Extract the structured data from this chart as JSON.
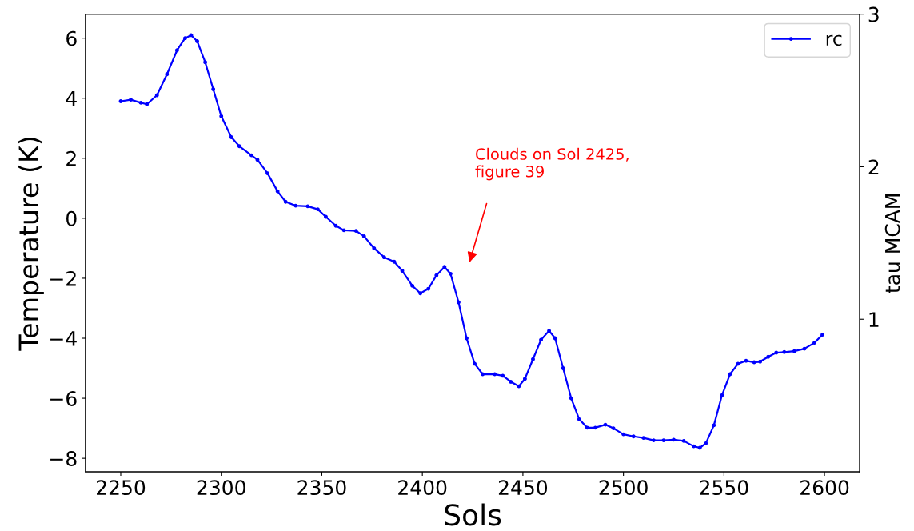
{
  "chart_data": {
    "type": "line",
    "xlabel": "Sols",
    "ylabel": "Temperature (K)",
    "y2label": "tau MCAM",
    "x": [
      2250,
      2255,
      2260,
      2263,
      2268,
      2273,
      2278,
      2282,
      2285,
      2288,
      2292,
      2296,
      2300,
      2305,
      2309,
      2315,
      2318,
      2323,
      2328,
      2332,
      2337,
      2343,
      2348,
      2352,
      2357,
      2361,
      2367,
      2371,
      2376,
      2381,
      2386,
      2390,
      2395,
      2399,
      2403,
      2407,
      2411,
      2414,
      2418,
      2422,
      2426,
      2430,
      2436,
      2440,
      2444,
      2448,
      2451,
      2455,
      2459,
      2463,
      2466,
      2470,
      2474,
      2478,
      2482,
      2486,
      2491,
      2495,
      2500,
      2505,
      2510,
      2515,
      2520,
      2525,
      2530,
      2535,
      2538,
      2541,
      2545,
      2549,
      2553,
      2557,
      2561,
      2565,
      2568,
      2572,
      2576,
      2580,
      2585,
      2590,
      2595,
      2599
    ],
    "series": [
      {
        "name": "rc",
        "color": "#0000ff",
        "values": [
          3.9,
          3.95,
          3.85,
          3.8,
          4.1,
          4.8,
          5.6,
          6.0,
          6.1,
          5.9,
          5.2,
          4.3,
          3.4,
          2.7,
          2.4,
          2.1,
          1.95,
          1.5,
          0.9,
          0.55,
          0.42,
          0.4,
          0.3,
          0.05,
          -0.25,
          -0.4,
          -0.42,
          -0.6,
          -1.0,
          -1.3,
          -1.45,
          -1.75,
          -2.25,
          -2.5,
          -2.35,
          -1.9,
          -1.62,
          -1.85,
          -2.8,
          -4.0,
          -4.85,
          -5.2,
          -5.2,
          -5.25,
          -5.45,
          -5.6,
          -5.35,
          -4.7,
          -4.05,
          -3.75,
          -4.0,
          -5.0,
          -6.0,
          -6.7,
          -6.98,
          -6.98,
          -6.88,
          -7.0,
          -7.2,
          -7.27,
          -7.32,
          -7.4,
          -7.4,
          -7.38,
          -7.42,
          -7.6,
          -7.65,
          -7.5,
          -6.9,
          -5.9,
          -5.2,
          -4.85,
          -4.75,
          -4.8,
          -4.78,
          -4.62,
          -4.48,
          -4.46,
          -4.43,
          -4.35,
          -4.15,
          -3.88
        ]
      }
    ],
    "xlim": [
      2232.5,
      2617.5
    ],
    "xticks": [
      2250,
      2300,
      2350,
      2400,
      2450,
      2500,
      2550,
      2600
    ],
    "ylim": [
      -8.45,
      6.8
    ],
    "yticks": [
      -8,
      -6,
      -4,
      -2,
      0,
      2,
      4,
      6
    ],
    "y2lim": [
      0,
      3
    ],
    "y2ticks": [
      1,
      2,
      3
    ],
    "annotations": [
      "Clouds on Sol 2425,\nfigure 39"
    ],
    "marker": "circle",
    "line_style": "solid",
    "legend": "top right",
    "grid": false
  }
}
